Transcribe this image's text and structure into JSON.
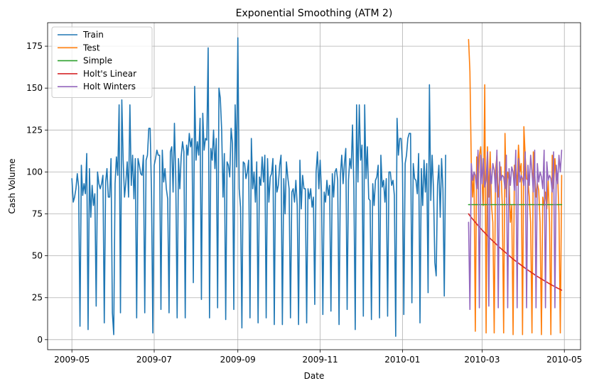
{
  "chart_data": {
    "type": "line",
    "title": "Exponential Smoothing (ATM 2)",
    "xlabel": "Date",
    "ylabel": "Cash Volume",
    "xlim": [
      "2009-04-13",
      "2010-05-13"
    ],
    "ylim": [
      -6,
      189
    ],
    "x_ticks": [
      "2009-05-01",
      "2009-07-01",
      "2009-09-01",
      "2009-11-01",
      "2010-01-01",
      "2010-03-01",
      "2010-05-01"
    ],
    "x_tick_labels": [
      "2009-05",
      "2009-07",
      "2009-09",
      "2009-11",
      "2010-01",
      "2010-03",
      "2010-05"
    ],
    "y_ticks": [
      0,
      25,
      50,
      75,
      100,
      125,
      150,
      175
    ],
    "grid": true,
    "legend_position": "top-left",
    "series": [
      {
        "name": "Train",
        "color": "#1f77b4",
        "start": "2009-05-01",
        "values": [
          96,
          82,
          85,
          90,
          99,
          91,
          8,
          104,
          86,
          93,
          87,
          111,
          6,
          102,
          73,
          92,
          80,
          87,
          20,
          100,
          93,
          90,
          93,
          98,
          10,
          94,
          102,
          85,
          85,
          108,
          16,
          3,
          93,
          109,
          98,
          140,
          16,
          143,
          107,
          85,
          94,
          106,
          85,
          140,
          92,
          110,
          84,
          108,
          13,
          108,
          104,
          99,
          98,
          110,
          16,
          107,
          110,
          126,
          126,
          88,
          4,
          104,
          108,
          113,
          110,
          110,
          18,
          113,
          94,
          102,
          90,
          84,
          16,
          112,
          115,
          88,
          129,
          96,
          13,
          108,
          90,
          109,
          118,
          112,
          13,
          116,
          110,
          123,
          115,
          120,
          34,
          151,
          107,
          118,
          110,
          132,
          24,
          135,
          113,
          120,
          119,
          174,
          13,
          114,
          107,
          125,
          102,
          120,
          19,
          150,
          144,
          125,
          85,
          111,
          12,
          106,
          104,
          97,
          126,
          117,
          18,
          140,
          103,
          180,
          90,
          79,
          7,
          106,
          105,
          96,
          100,
          107,
          13,
          120,
          90,
          100,
          82,
          106,
          10,
          97,
          92,
          109,
          94,
          110,
          13,
          108,
          82,
          97,
          99,
          108,
          9,
          104,
          88,
          92,
          104,
          110,
          9,
          96,
          75,
          106,
          97,
          90,
          13,
          88,
          90,
          82,
          95,
          80,
          9,
          107,
          78,
          98,
          90,
          90,
          10,
          90,
          84,
          90,
          79,
          85,
          21,
          100,
          112,
          90,
          107,
          88,
          15,
          88,
          82,
          95,
          86,
          92,
          17,
          99,
          85,
          100,
          102,
          95,
          9,
          98,
          110,
          93,
          105,
          114,
          18,
          95,
          108,
          102,
          128,
          90,
          6,
          140,
          94,
          140,
          107,
          116,
          14,
          140,
          96,
          115,
          84,
          83,
          12,
          93,
          80,
          95,
          97,
          104,
          13,
          110,
          91,
          95,
          82,
          96,
          14,
          100,
          100,
          92,
          95,
          86,
          2,
          132,
          110,
          120,
          120,
          105,
          15,
          105,
          110,
          120,
          123,
          123,
          22,
          105,
          96,
          95,
          87,
          111,
          10,
          102,
          80,
          107,
          88,
          105,
          28,
          152,
          83,
          110,
          90,
          46,
          38,
          92,
          104,
          73,
          108,
          90,
          26,
          110
        ]
      },
      {
        "name": "Test",
        "color": "#ff7f0e",
        "start": "2010-02-19",
        "values": [
          179,
          160,
          106,
          85,
          100,
          5,
          109,
          90,
          110,
          115,
          95,
          80,
          152,
          4,
          115,
          85,
          112,
          80,
          70,
          4,
          101,
          110,
          85,
          95,
          103,
          80,
          4,
          123,
          85,
          100,
          95,
          70,
          80,
          3,
          104,
          102,
          92,
          116,
          100,
          105,
          3,
          127,
          109,
          96,
          95,
          85,
          70,
          4,
          112,
          100,
          85,
          93,
          89,
          70,
          3,
          85,
          80,
          88,
          78,
          95,
          70,
          3,
          110,
          90,
          108,
          95,
          99,
          75,
          4,
          98
        ]
      },
      {
        "name": "Simple",
        "color": "#2ca02c",
        "start": "2010-02-19",
        "values": [
          80.5,
          80.5,
          80.5,
          80.5,
          80.5,
          80.5,
          80.5,
          80.5,
          80.5,
          80.5,
          80.5,
          80.5,
          80.5,
          80.5,
          80.5,
          80.5,
          80.5,
          80.5,
          80.5,
          80.5,
          80.5,
          80.5,
          80.5,
          80.5,
          80.5,
          80.5,
          80.5,
          80.5,
          80.5,
          80.5,
          80.5,
          80.5,
          80.5,
          80.5,
          80.5,
          80.5,
          80.5,
          80.5,
          80.5,
          80.5,
          80.5,
          80.5,
          80.5,
          80.5,
          80.5,
          80.5,
          80.5,
          80.5,
          80.5,
          80.5,
          80.5,
          80.5,
          80.5,
          80.5,
          80.5,
          80.5,
          80.5,
          80.5,
          80.5,
          80.5,
          80.5,
          80.5,
          80.5,
          80.5,
          80.5,
          80.5,
          80.5,
          80.5,
          80.5,
          80.5
        ]
      },
      {
        "name": "Holt's Linear",
        "color": "#d62728",
        "start": "2010-02-19",
        "values": [
          75.0,
          73.9,
          72.9,
          71.9,
          71.0,
          70.0,
          69.0,
          68.1,
          67.2,
          66.3,
          65.4,
          64.5,
          63.7,
          62.8,
          62.0,
          61.2,
          60.4,
          59.6,
          58.8,
          58.0,
          57.3,
          56.5,
          55.8,
          55.0,
          54.3,
          53.6,
          52.9,
          52.2,
          51.5,
          50.8,
          50.1,
          49.4,
          48.7,
          48.1,
          47.4,
          46.8,
          46.2,
          45.6,
          45.0,
          44.4,
          43.8,
          43.2,
          42.6,
          42.0,
          41.5,
          40.9,
          40.4,
          39.8,
          39.3,
          38.7,
          38.2,
          37.7,
          37.2,
          36.7,
          36.2,
          35.7,
          35.2,
          34.7,
          34.3,
          33.8,
          33.3,
          32.9,
          32.4,
          32.0,
          31.6,
          31.1,
          30.7,
          30.3,
          29.9,
          29.5
        ]
      },
      {
        "name": "Holt Winters",
        "color": "#9467bd",
        "start": "2010-02-19",
        "values": [
          70,
          18,
          105,
          95,
          100,
          98,
          90,
          113,
          19,
          110,
          93,
          108,
          91,
          95,
          112,
          20,
          102,
          93,
          105,
          101,
          88,
          113,
          19,
          106,
          95,
          98,
          97,
          90,
          110,
          19,
          102,
          92,
          103,
          100,
          89,
          113,
          19,
          108,
          94,
          98,
          96,
          92,
          112,
          19,
          104,
          92,
          110,
          100,
          88,
          113,
          19,
          105,
          94,
          100,
          97,
          90,
          113,
          19,
          106,
          95,
          98,
          96,
          88,
          112,
          19,
          104,
          93,
          110,
          100,
          113
        ]
      }
    ]
  }
}
